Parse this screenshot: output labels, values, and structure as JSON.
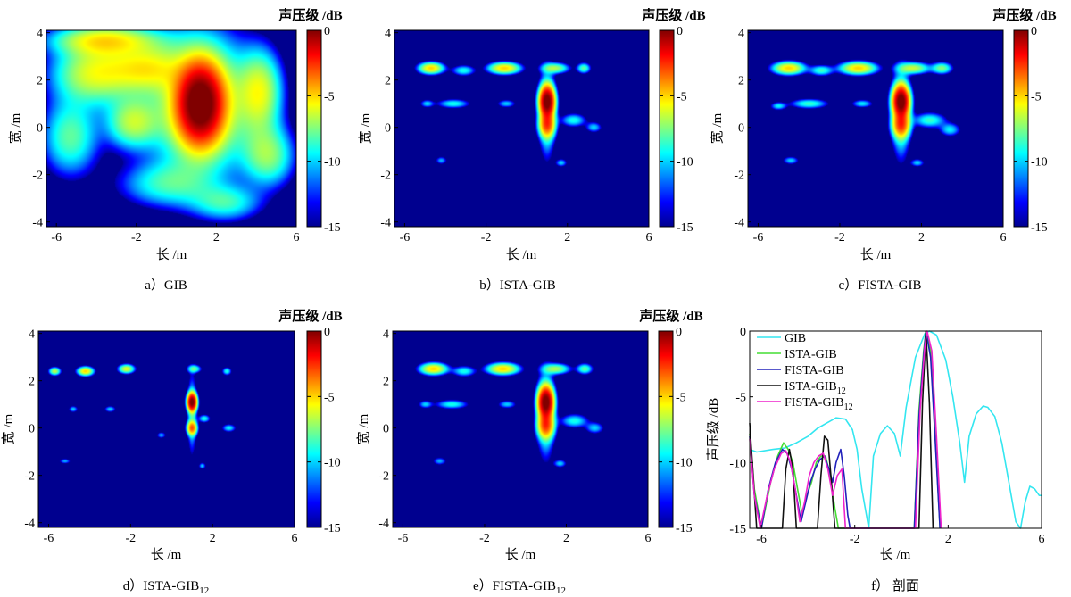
{
  "colors": {
    "background": "#ffffff",
    "map_floor": "#00008f",
    "colormap": [
      "#00008f",
      "#0000ff",
      "#0080ff",
      "#00ffff",
      "#80ff80",
      "#ffff00",
      "#ff8000",
      "#ff0000",
      "#800000"
    ],
    "line_gib": "#33e6f0",
    "line_ista": "#44dd33",
    "line_fista": "#2222bb",
    "line_ista12": "#111111",
    "line_fista12": "#ee22cc"
  },
  "chart_data": [
    {
      "id": "a",
      "type": "heatmap",
      "caption": "a）GIB",
      "xlabel": "长 /m",
      "ylabel": "宽 /m",
      "colorbar_label": "声压级 /dB",
      "xlim": [
        -6.5,
        6
      ],
      "ylim": [
        -4.2,
        4.1
      ],
      "xticks": [
        "-6",
        "-2",
        "2",
        "6"
      ],
      "yticks": [
        "4",
        "2",
        "0",
        "-2",
        "-4"
      ],
      "clim": [
        -15,
        0
      ],
      "cticks": [
        "0",
        "-5",
        "-10",
        "-15"
      ],
      "floor_db": -15,
      "sources": [
        {
          "x": 1.2,
          "y": 1.0,
          "sx": 0.95,
          "sy": 1.4,
          "db": 0
        },
        {
          "x": 1.2,
          "y": 1.0,
          "sx": 2.2,
          "sy": 2.6,
          "db": -5
        },
        {
          "x": -4.0,
          "y": 2.3,
          "sx": 2.0,
          "sy": 1.2,
          "db": -6
        },
        {
          "x": -1.5,
          "y": 2.5,
          "sx": 1.6,
          "sy": 0.9,
          "db": -7
        },
        {
          "x": 4.2,
          "y": 1.5,
          "sx": 1.0,
          "sy": 1.6,
          "db": -6.5
        },
        {
          "x": -5.3,
          "y": -0.4,
          "sx": 1.3,
          "sy": 1.5,
          "db": -8
        },
        {
          "x": -2.2,
          "y": 0.2,
          "sx": 1.2,
          "sy": 1.0,
          "db": -7
        },
        {
          "x": 4.6,
          "y": -1.2,
          "sx": 1.2,
          "sy": 1.2,
          "db": -7.5
        },
        {
          "x": -3.5,
          "y": 3.7,
          "sx": 2.5,
          "sy": 0.6,
          "db": -6
        },
        {
          "x": -0.5,
          "y": -2.4,
          "sx": 2.2,
          "sy": 0.9,
          "db": -9
        },
        {
          "x": 2.5,
          "y": -3.2,
          "sx": 1.6,
          "sy": 0.7,
          "db": -9
        }
      ]
    },
    {
      "id": "b",
      "type": "heatmap",
      "caption": "b）ISTA-GIB",
      "xlabel": "长 /m",
      "ylabel": "宽 /m",
      "colorbar_label": "声压级 /dB",
      "xlim": [
        -6.5,
        6
      ],
      "ylim": [
        -4.2,
        4.1
      ],
      "xticks": [
        "-6",
        "-2",
        "2",
        "6"
      ],
      "yticks": [
        "4",
        "2",
        "0",
        "-2",
        "-4"
      ],
      "clim": [
        -15,
        0
      ],
      "cticks": [
        "0",
        "-5",
        "-10",
        "-15"
      ],
      "floor_db": -15,
      "sources": [
        {
          "x": 1.0,
          "y": 1.1,
          "sx": 0.32,
          "sy": 0.55,
          "db": 0
        },
        {
          "x": 1.0,
          "y": 0.1,
          "sx": 0.35,
          "sy": 0.45,
          "db": -4
        },
        {
          "x": 1.0,
          "y": 0.6,
          "sx": 0.35,
          "sy": 1.6,
          "db": -7.5
        },
        {
          "x": -4.7,
          "y": 2.5,
          "sx": 0.55,
          "sy": 0.22,
          "db": -5
        },
        {
          "x": -1.1,
          "y": 2.5,
          "sx": 0.7,
          "sy": 0.22,
          "db": -5
        },
        {
          "x": 1.4,
          "y": 2.5,
          "sx": 0.6,
          "sy": 0.2,
          "db": -7
        },
        {
          "x": 2.8,
          "y": 2.5,
          "sx": 0.3,
          "sy": 0.2,
          "db": -8
        },
        {
          "x": -3.1,
          "y": 2.4,
          "sx": 0.5,
          "sy": 0.2,
          "db": -9
        },
        {
          "x": -3.6,
          "y": 1.0,
          "sx": 0.7,
          "sy": 0.17,
          "db": -9
        },
        {
          "x": -4.9,
          "y": 1.0,
          "sx": 0.3,
          "sy": 0.15,
          "db": -10
        },
        {
          "x": -1.0,
          "y": 1.0,
          "sx": 0.4,
          "sy": 0.15,
          "db": -10
        },
        {
          "x": 2.3,
          "y": 0.3,
          "sx": 0.55,
          "sy": 0.25,
          "db": -9
        },
        {
          "x": 3.3,
          "y": 0.0,
          "sx": 0.35,
          "sy": 0.2,
          "db": -10
        },
        {
          "x": -4.2,
          "y": -1.4,
          "sx": 0.25,
          "sy": 0.15,
          "db": -10.5
        },
        {
          "x": 1.7,
          "y": -1.5,
          "sx": 0.25,
          "sy": 0.15,
          "db": -10
        }
      ]
    },
    {
      "id": "c",
      "type": "heatmap",
      "caption": "c）FISTA-GIB",
      "xlabel": "长 /m",
      "ylabel": "宽 /m",
      "colorbar_label": "声压级 /dB",
      "xlim": [
        -6.5,
        6
      ],
      "ylim": [
        -4.2,
        4.1
      ],
      "xticks": [
        "-6",
        "-2",
        "2",
        "6"
      ],
      "yticks": [
        "4",
        "2",
        "0",
        "-2",
        "-4"
      ],
      "clim": [
        -15,
        0
      ],
      "cticks": [
        "0",
        "-5",
        "-10",
        "-15"
      ],
      "floor_db": -15,
      "sources": [
        {
          "x": 1.0,
          "y": 1.1,
          "sx": 0.35,
          "sy": 0.55,
          "db": 0
        },
        {
          "x": 1.0,
          "y": 0.1,
          "sx": 0.38,
          "sy": 0.45,
          "db": -4
        },
        {
          "x": 1.0,
          "y": 0.6,
          "sx": 0.4,
          "sy": 1.6,
          "db": -7
        },
        {
          "x": -4.5,
          "y": 2.5,
          "sx": 0.7,
          "sy": 0.24,
          "db": -5
        },
        {
          "x": -1.1,
          "y": 2.5,
          "sx": 0.8,
          "sy": 0.24,
          "db": -5
        },
        {
          "x": 1.6,
          "y": 2.5,
          "sx": 0.7,
          "sy": 0.22,
          "db": -6.5
        },
        {
          "x": 3.0,
          "y": 2.5,
          "sx": 0.45,
          "sy": 0.22,
          "db": -7.5
        },
        {
          "x": -2.9,
          "y": 2.4,
          "sx": 0.5,
          "sy": 0.2,
          "db": -8.5
        },
        {
          "x": -3.5,
          "y": 1.0,
          "sx": 0.8,
          "sy": 0.18,
          "db": -8.5
        },
        {
          "x": -5.0,
          "y": 0.9,
          "sx": 0.35,
          "sy": 0.15,
          "db": -9.5
        },
        {
          "x": -0.9,
          "y": 1.0,
          "sx": 0.45,
          "sy": 0.15,
          "db": -9.5
        },
        {
          "x": 2.4,
          "y": 0.3,
          "sx": 0.7,
          "sy": 0.28,
          "db": -8.5
        },
        {
          "x": 3.4,
          "y": -0.1,
          "sx": 0.45,
          "sy": 0.25,
          "db": -9.5
        },
        {
          "x": -4.4,
          "y": -1.4,
          "sx": 0.35,
          "sy": 0.15,
          "db": -10
        },
        {
          "x": 1.8,
          "y": -1.5,
          "sx": 0.3,
          "sy": 0.15,
          "db": -10
        }
      ]
    },
    {
      "id": "d",
      "type": "heatmap",
      "caption_main": "d）ISTA-GIB",
      "caption_sub": "12",
      "xlabel": "长 /m",
      "ylabel": "宽 /m",
      "colorbar_label": "声压级 /dB",
      "xlim": [
        -6.5,
        6
      ],
      "ylim": [
        -4.2,
        4.1
      ],
      "xticks": [
        "-6",
        "-2",
        "2",
        "6"
      ],
      "yticks": [
        "4",
        "2",
        "0",
        "-2",
        "-4"
      ],
      "clim": [
        -15,
        0
      ],
      "cticks": [
        "0",
        "-5",
        "-10",
        "-15"
      ],
      "floor_db": -15,
      "sources": [
        {
          "x": 1.0,
          "y": 1.1,
          "sx": 0.2,
          "sy": 0.32,
          "db": 0
        },
        {
          "x": 1.0,
          "y": 0.0,
          "sx": 0.22,
          "sy": 0.25,
          "db": -4
        },
        {
          "x": 1.0,
          "y": 0.6,
          "sx": 0.2,
          "sy": 1.5,
          "db": -9
        },
        {
          "x": 1.6,
          "y": 0.4,
          "sx": 0.25,
          "sy": 0.15,
          "db": -9
        },
        {
          "x": -5.7,
          "y": 2.4,
          "sx": 0.25,
          "sy": 0.15,
          "db": -6.5
        },
        {
          "x": -4.2,
          "y": 2.4,
          "sx": 0.35,
          "sy": 0.17,
          "db": -5
        },
        {
          "x": -2.2,
          "y": 2.5,
          "sx": 0.35,
          "sy": 0.17,
          "db": -6
        },
        {
          "x": 1.1,
          "y": 2.5,
          "sx": 0.3,
          "sy": 0.15,
          "db": -8
        },
        {
          "x": 2.7,
          "y": 2.4,
          "sx": 0.2,
          "sy": 0.15,
          "db": -9
        },
        {
          "x": -4.8,
          "y": 0.8,
          "sx": 0.2,
          "sy": 0.12,
          "db": -10
        },
        {
          "x": -3.0,
          "y": 0.8,
          "sx": 0.25,
          "sy": 0.12,
          "db": -10
        },
        {
          "x": 2.8,
          "y": 0.0,
          "sx": 0.3,
          "sy": 0.15,
          "db": -9.5
        },
        {
          "x": -0.5,
          "y": -0.3,
          "sx": 0.2,
          "sy": 0.12,
          "db": -10.5
        },
        {
          "x": -5.2,
          "y": -1.4,
          "sx": 0.25,
          "sy": 0.1,
          "db": -10.5
        },
        {
          "x": 1.5,
          "y": -1.6,
          "sx": 0.15,
          "sy": 0.12,
          "db": -10
        }
      ]
    },
    {
      "id": "e",
      "type": "heatmap",
      "caption_main": "e）FISTA-GIB",
      "caption_sub": "12",
      "xlabel": "长 /m",
      "ylabel": "宽 /m",
      "colorbar_label": "声压级 /dB",
      "xlim": [
        -6.5,
        6
      ],
      "ylim": [
        -4.2,
        4.1
      ],
      "xticks": [
        "-6",
        "-2",
        "2",
        "6"
      ],
      "yticks": [
        "4",
        "2",
        "0",
        "-2",
        "-4"
      ],
      "clim": [
        -15,
        0
      ],
      "cticks": [
        "0",
        "-5",
        "-10",
        "-15"
      ],
      "floor_db": -15,
      "sources": [
        {
          "x": 1.0,
          "y": 1.1,
          "sx": 0.32,
          "sy": 0.55,
          "db": 0
        },
        {
          "x": 1.0,
          "y": 0.1,
          "sx": 0.36,
          "sy": 0.45,
          "db": -4
        },
        {
          "x": 1.0,
          "y": 0.6,
          "sx": 0.38,
          "sy": 1.6,
          "db": -7.5
        },
        {
          "x": -4.5,
          "y": 2.5,
          "sx": 0.6,
          "sy": 0.22,
          "db": -5
        },
        {
          "x": -1.1,
          "y": 2.5,
          "sx": 0.7,
          "sy": 0.22,
          "db": -5
        },
        {
          "x": 1.5,
          "y": 2.5,
          "sx": 0.6,
          "sy": 0.2,
          "db": -7
        },
        {
          "x": 2.9,
          "y": 2.5,
          "sx": 0.35,
          "sy": 0.2,
          "db": -8
        },
        {
          "x": -3.0,
          "y": 2.4,
          "sx": 0.5,
          "sy": 0.2,
          "db": -9
        },
        {
          "x": -3.6,
          "y": 1.0,
          "sx": 0.7,
          "sy": 0.17,
          "db": -9
        },
        {
          "x": -4.9,
          "y": 1.0,
          "sx": 0.3,
          "sy": 0.15,
          "db": -10
        },
        {
          "x": -0.9,
          "y": 1.0,
          "sx": 0.4,
          "sy": 0.15,
          "db": -10
        },
        {
          "x": 2.4,
          "y": 0.3,
          "sx": 0.6,
          "sy": 0.26,
          "db": -9
        },
        {
          "x": 3.4,
          "y": 0.0,
          "sx": 0.4,
          "sy": 0.22,
          "db": -10
        },
        {
          "x": -4.2,
          "y": -1.4,
          "sx": 0.3,
          "sy": 0.15,
          "db": -10.5
        },
        {
          "x": 1.7,
          "y": -1.5,
          "sx": 0.28,
          "sy": 0.15,
          "db": -10
        }
      ]
    },
    {
      "id": "f",
      "type": "line",
      "caption": "f） 剖面",
      "xlabel": "长 /m",
      "ylabel": "声压级 /dB",
      "xlim": [
        -6.5,
        6
      ],
      "ylim": [
        -15,
        0
      ],
      "xticks": [
        "-6",
        "-2",
        "2",
        "6"
      ],
      "yticks": [
        "0",
        "-5",
        "-10",
        "-15"
      ],
      "legend_position": "top-left",
      "series": [
        {
          "name": "GIB",
          "sub": "",
          "color_key": "line_gib",
          "x": [
            -6.5,
            -6.2,
            -5.5,
            -5.0,
            -4.5,
            -4.0,
            -3.6,
            -3.2,
            -2.8,
            -2.4,
            -2.1,
            -1.9,
            -1.7,
            -1.4,
            -1.2,
            -0.9,
            -0.6,
            -0.3,
            -0.05,
            0.2,
            0.6,
            1.0,
            1.2,
            1.5,
            1.9,
            2.2,
            2.5,
            2.7,
            2.9,
            3.2,
            3.5,
            3.7,
            4.0,
            4.3,
            4.6,
            4.9,
            5.1,
            5.3,
            5.5,
            5.7,
            5.9,
            6.0
          ],
          "y": [
            -9.0,
            -9.2,
            -9.0,
            -8.9,
            -8.5,
            -8.0,
            -7.4,
            -7.0,
            -6.6,
            -6.7,
            -7.5,
            -9.0,
            -12.0,
            -15.0,
            -9.5,
            -7.8,
            -7.2,
            -7.8,
            -9.5,
            -5.8,
            -2.0,
            -0.2,
            0.0,
            -0.3,
            -2.2,
            -5.0,
            -8.5,
            -11.5,
            -8.0,
            -6.3,
            -5.7,
            -5.8,
            -6.5,
            -8.5,
            -11.5,
            -14.5,
            -15.0,
            -13.0,
            -11.8,
            -12.0,
            -12.5,
            -12.5
          ]
        },
        {
          "name": "ISTA-GIB",
          "sub": "",
          "color_key": "line_ista",
          "x": [
            -6.5,
            -6.3,
            -6.0,
            -5.6,
            -5.3,
            -5.05,
            -4.85,
            -4.65,
            -4.45,
            -4.25,
            -4.05,
            -3.85,
            -3.65,
            -3.45,
            -3.25,
            -3.05,
            -2.85,
            -2.7,
            -2.6,
            -2.5,
            0.55,
            0.75,
            0.95,
            1.05,
            1.25,
            1.45,
            1.65
          ],
          "y": [
            -7.8,
            -12.0,
            -15.0,
            -11.5,
            -9.5,
            -8.5,
            -9.0,
            -10.0,
            -12.0,
            -14.0,
            -12.5,
            -11.5,
            -10.0,
            -9.5,
            -9.5,
            -11.0,
            -13.5,
            -15.0,
            -15.0,
            -15.0,
            -15.0,
            -6.0,
            -1.5,
            0.0,
            -1.5,
            -8.0,
            -15.0
          ]
        },
        {
          "name": "FISTA-GIB",
          "sub": "",
          "color_key": "line_fista",
          "x": [
            -6.5,
            -6.3,
            -6.0,
            -5.7,
            -5.4,
            -5.1,
            -4.9,
            -4.7,
            -4.5,
            -4.3,
            -4.1,
            -3.9,
            -3.7,
            -3.5,
            -3.3,
            -3.1,
            -2.95,
            -2.8,
            -2.6,
            -2.45,
            -2.3,
            -2.2,
            0.55,
            0.75,
            0.95,
            1.05,
            1.25,
            1.45,
            1.65
          ],
          "y": [
            -8.0,
            -12.5,
            -15.0,
            -12.0,
            -10.0,
            -9.0,
            -9.3,
            -10.5,
            -12.5,
            -14.5,
            -13.0,
            -11.5,
            -10.5,
            -9.8,
            -9.5,
            -10.5,
            -11.5,
            -10.0,
            -9.0,
            -11.0,
            -14.0,
            -15.0,
            -15.0,
            -6.5,
            -1.8,
            0.0,
            -2.0,
            -8.5,
            -15.0
          ]
        },
        {
          "name": "ISTA-GIB",
          "sub": "12",
          "color_key": "line_ista12",
          "x": [
            -6.5,
            -6.35,
            -6.2,
            -6.05,
            -5.1,
            -4.95,
            -4.8,
            -4.65,
            -4.5,
            -4.35,
            -3.6,
            -3.45,
            -3.3,
            -3.15,
            -3.0,
            -2.85,
            -2.7,
            0.75,
            0.9,
            1.05,
            1.2,
            1.35
          ],
          "y": [
            -7.0,
            -11.0,
            -15.0,
            -15.0,
            -15.0,
            -10.5,
            -9.0,
            -10.5,
            -15.0,
            -15.0,
            -15.0,
            -11.0,
            -8.0,
            -8.3,
            -11.5,
            -15.0,
            -15.0,
            -15.0,
            -5.5,
            0.0,
            -5.5,
            -15.0
          ]
        },
        {
          "name": "FISTA-GIB",
          "sub": "12",
          "color_key": "line_fista12",
          "x": [
            -6.5,
            -6.3,
            -6.05,
            -5.75,
            -5.45,
            -5.15,
            -4.95,
            -4.75,
            -4.55,
            -4.35,
            -4.15,
            -3.95,
            -3.75,
            -3.55,
            -3.35,
            -3.15,
            -2.95,
            -2.75,
            -2.55,
            -2.4,
            0.6,
            0.8,
            1.0,
            1.1,
            1.3,
            1.5,
            1.7
          ],
          "y": [
            -8.2,
            -12.5,
            -15.0,
            -12.5,
            -10.5,
            -9.3,
            -9.1,
            -10.0,
            -12.0,
            -14.5,
            -13.0,
            -11.0,
            -10.0,
            -9.5,
            -9.3,
            -10.5,
            -12.5,
            -11.0,
            -10.5,
            -15.0,
            -15.0,
            -6.0,
            -1.2,
            0.0,
            -1.5,
            -8.0,
            -15.0
          ]
        }
      ]
    }
  ]
}
